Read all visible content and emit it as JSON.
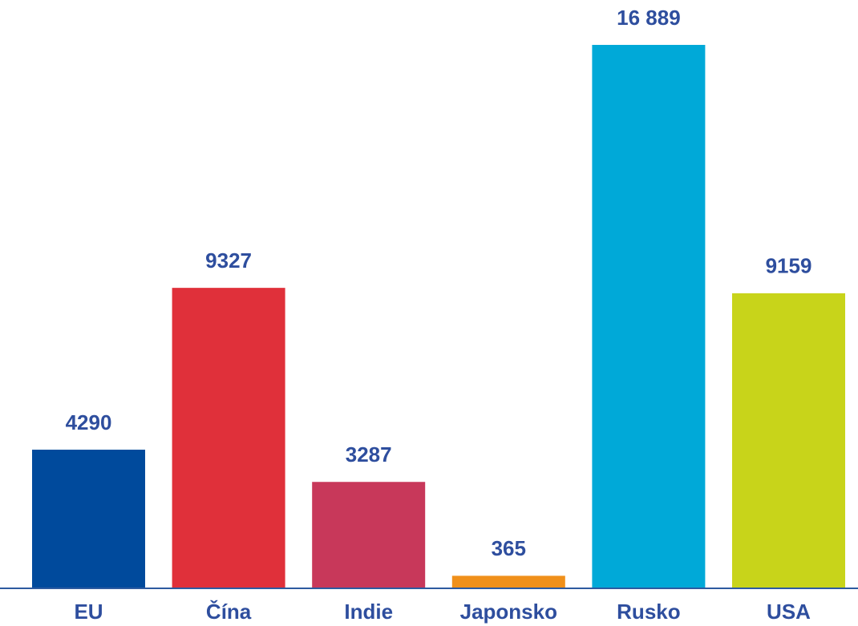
{
  "chart_data": {
    "type": "bar",
    "categories": [
      "EU",
      "Čína",
      "Indie",
      "Japonsko",
      "Rusko",
      "USA"
    ],
    "values": [
      4290,
      9327,
      3287,
      365,
      16889,
      9159
    ],
    "value_labels": [
      "4290",
      "9327",
      "3287",
      "365",
      "16 889",
      "9159"
    ],
    "colors": [
      "#004a9c",
      "#e0303a",
      "#c8385a",
      "#f0901a",
      "#00a9d8",
      "#c8d41a"
    ]
  }
}
